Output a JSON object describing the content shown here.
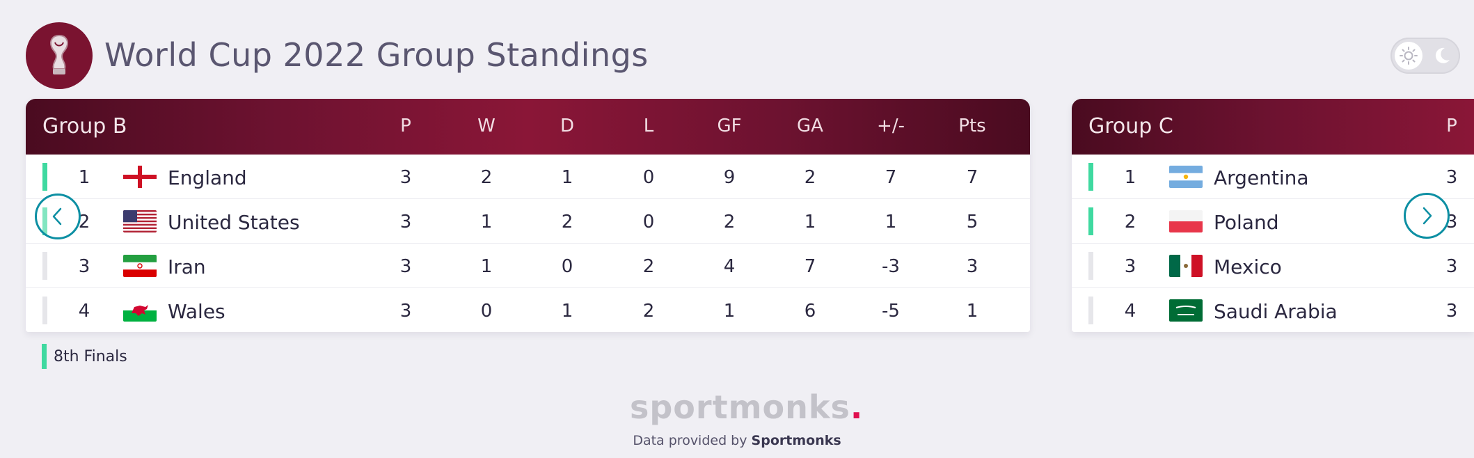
{
  "header": {
    "title": "World Cup 2022 Group Standings",
    "logo_icon": "world-cup-trophy-icon",
    "theme_toggle": {
      "sun_icon": "sun-icon",
      "moon_icon": "moon-icon"
    }
  },
  "columns": [
    "P",
    "W",
    "D",
    "L",
    "GF",
    "GA",
    "+/-",
    "Pts"
  ],
  "groups": [
    {
      "name": "Group B",
      "rows": [
        {
          "rank": "1",
          "team": "England",
          "flag": "england-flag-icon",
          "qualified": true,
          "p": "3",
          "w": "2",
          "d": "1",
          "l": "0",
          "gf": "9",
          "ga": "2",
          "gd": "7",
          "pts": "7"
        },
        {
          "rank": "2",
          "team": "United States",
          "flag": "usa-flag-icon",
          "qualified": true,
          "p": "3",
          "w": "1",
          "d": "2",
          "l": "0",
          "gf": "2",
          "ga": "1",
          "gd": "1",
          "pts": "5"
        },
        {
          "rank": "3",
          "team": "Iran",
          "flag": "iran-flag-icon",
          "qualified": false,
          "p": "3",
          "w": "1",
          "d": "0",
          "l": "2",
          "gf": "4",
          "ga": "7",
          "gd": "-3",
          "pts": "3"
        },
        {
          "rank": "4",
          "team": "Wales",
          "flag": "wales-flag-icon",
          "qualified": false,
          "p": "3",
          "w": "0",
          "d": "1",
          "l": "2",
          "gf": "1",
          "ga": "6",
          "gd": "-5",
          "pts": "1"
        }
      ]
    },
    {
      "name": "Group C",
      "rows": [
        {
          "rank": "1",
          "team": "Argentina",
          "flag": "argentina-flag-icon",
          "qualified": true,
          "p": "3"
        },
        {
          "rank": "2",
          "team": "Poland",
          "flag": "poland-flag-icon",
          "qualified": true,
          "p": "3"
        },
        {
          "rank": "3",
          "team": "Mexico",
          "flag": "mexico-flag-icon",
          "qualified": false,
          "p": "3"
        },
        {
          "rank": "4",
          "team": "Saudi Arabia",
          "flag": "saudi-arabia-flag-icon",
          "qualified": false,
          "p": "3"
        }
      ]
    }
  ],
  "legend": {
    "label": "8th Finals",
    "color": "#3fd9a0"
  },
  "navigation": {
    "prev_icon": "chevron-left-icon",
    "next_icon": "chevron-right-icon"
  },
  "footer": {
    "brand": "sportmonks",
    "brand_dot": ".",
    "credit_prefix": "Data provided by",
    "credit_name": "Sportmonks"
  },
  "colors": {
    "header_gradient_dark": "#4a0b20",
    "header_gradient_mid": "#8a1637",
    "qualified_bar": "#3fd9a0",
    "arrow": "#0d8fa3",
    "brand_dot": "#e0104f"
  }
}
